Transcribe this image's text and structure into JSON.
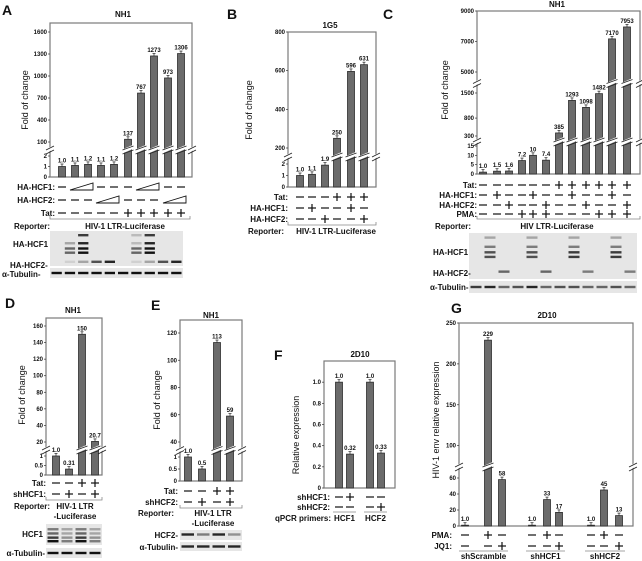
{
  "chart_data": [
    {
      "id": "A",
      "type": "bar",
      "letter": "A",
      "title": "NH1",
      "ylabel": "Fold of change",
      "axis_segments": [
        {
          "min": 0,
          "max": 2,
          "ticks": [
            "0",
            "1",
            "2"
          ]
        },
        {
          "min": 100,
          "max": 1600,
          "ticks": [
            "100",
            "400",
            "700",
            "1000",
            "1300",
            "1600"
          ]
        }
      ],
      "values": [
        1.0,
        1.1,
        1.2,
        1.1,
        1.2,
        137,
        767,
        1273,
        973,
        1306
      ],
      "labels": [
        "1.0",
        "1.1",
        "1.2",
        "1.1",
        "1.2",
        "137",
        "767",
        "1273",
        "973",
        "1306"
      ],
      "conditions": [
        {
          "label": "HA-HCF1:",
          "values": [
            "-",
            "wedge",
            "",
            "-",
            "-",
            "-",
            "wedge",
            "",
            "-",
            "-"
          ]
        },
        {
          "label": "HA-HCF2:",
          "values": [
            "-",
            "-",
            "-",
            "wedge",
            "",
            "-",
            "-",
            "-",
            "wedge",
            ""
          ]
        },
        {
          "label": "Tat:",
          "values": [
            "-",
            "-",
            "-",
            "-",
            "-",
            "+",
            "+",
            "+",
            "+",
            "+"
          ]
        }
      ],
      "reporter_label": "Reporter:",
      "reporter": "HIV-1 LTR-Luciferase",
      "blot_labels": [
        "HA-HCF1",
        "HA-HCF2-",
        "α-Tubulin-"
      ]
    },
    {
      "id": "B",
      "type": "bar",
      "letter": "B",
      "title": "1G5",
      "ylabel": "Fold of change",
      "axis_segments": [
        {
          "min": 0,
          "max": 2,
          "ticks": [
            "0",
            "1",
            "2"
          ]
        },
        {
          "min": 200,
          "max": 800,
          "ticks": [
            "200",
            "400",
            "600",
            "800"
          ]
        }
      ],
      "values": [
        1.0,
        1.1,
        1.9,
        250,
        596,
        631
      ],
      "labels": [
        "1.0",
        "1.1",
        "1.9",
        "250",
        "596",
        "631"
      ],
      "conditions": [
        {
          "label": "Tat:",
          "values": [
            "-",
            "-",
            "-",
            "+",
            "+",
            "+"
          ]
        },
        {
          "label": "HA-HCF1:",
          "values": [
            "-",
            "+",
            "-",
            "-",
            "+",
            "-"
          ]
        },
        {
          "label": "HA-HCF2:",
          "values": [
            "-",
            "-",
            "+",
            "-",
            "-",
            "+"
          ]
        }
      ],
      "reporter_label": "Reporter:",
      "reporter": "HIV-1 LTR-Luciferase",
      "blot_labels": []
    },
    {
      "id": "C",
      "type": "bar",
      "letter": "C",
      "title": "NH1",
      "ylabel": "Fold of change",
      "axis_segments": [
        {
          "min": 0,
          "max": 15,
          "ticks": [
            "0",
            "5",
            "10",
            "15"
          ]
        },
        {
          "min": 300,
          "max": 1500,
          "ticks": [
            "300",
            "800",
            "1500"
          ]
        },
        {
          "min": 5000,
          "max": 9000,
          "ticks": [
            "5000",
            "7000",
            "9000"
          ]
        }
      ],
      "values": [
        1.0,
        1.5,
        1.6,
        7.2,
        10,
        7.4,
        385,
        1293,
        1098,
        1482,
        7170,
        7953
      ],
      "labels": [
        "1.0",
        "1.5",
        "1.6",
        "7.2",
        "10",
        "7.4",
        "385",
        "1293",
        "1098",
        "1482",
        "7170",
        "7953"
      ],
      "conditions": [
        {
          "label": "Tat:",
          "values": [
            "-",
            "-",
            "-",
            "-",
            "-",
            "-",
            "+",
            "+",
            "+",
            "+",
            "+",
            "+"
          ]
        },
        {
          "label": "HA-HCF1:",
          "values": [
            "-",
            "+",
            "-",
            "-",
            "+",
            "-",
            "-",
            "+",
            "-",
            "-",
            "+",
            "-"
          ]
        },
        {
          "label": "HA-HCF2:",
          "values": [
            "-",
            "-",
            "+",
            "-",
            "-",
            "+",
            "-",
            "-",
            "+",
            "-",
            "-",
            "+"
          ]
        },
        {
          "label": "PMA:",
          "values": [
            "-",
            "-",
            "-",
            "+",
            "+",
            "+",
            "-",
            "-",
            "-",
            "+",
            "+",
            "+"
          ]
        }
      ],
      "reporter_label": "Reporter:",
      "reporter": "HIV LTR-Luciferase",
      "blot_labels": [
        "HA-HCF1",
        "HA-HCF2-",
        "α-Tubulin-"
      ]
    },
    {
      "id": "D",
      "type": "bar",
      "letter": "D",
      "title": "NH1",
      "ylabel": "Fold of change",
      "axis_segments": [
        {
          "min": 0,
          "max": 1,
          "ticks": [
            "0",
            "0.5",
            "1"
          ]
        },
        {
          "min": 20,
          "max": 160,
          "ticks": [
            "20",
            "40",
            "60",
            "80",
            "100",
            "120",
            "140",
            "160"
          ]
        }
      ],
      "values": [
        1.0,
        0.31,
        150,
        20.7
      ],
      "labels": [
        "1.0",
        "0.31",
        "150",
        "20.7"
      ],
      "conditions": [
        {
          "label": "Tat:",
          "values": [
            "-",
            "-",
            "+",
            "+"
          ]
        },
        {
          "label": "shHCF1:",
          "values": [
            "-",
            "+",
            "-",
            "+"
          ]
        }
      ],
      "reporter_label": "Reporter:",
      "reporter": "HIV-1 LTR",
      "reporter_line2": "-Luciferase",
      "blot_labels": [
        "HCF1",
        "α-Tubulin-"
      ]
    },
    {
      "id": "E",
      "type": "bar",
      "letter": "E",
      "title": "NH1",
      "ylabel": "Fold of change",
      "axis_segments": [
        {
          "min": 0,
          "max": 1,
          "ticks": [
            "0",
            "0.5",
            "1"
          ]
        },
        {
          "min": 40,
          "max": 120,
          "ticks": [
            "40",
            "60",
            "80",
            "100",
            "120"
          ]
        }
      ],
      "values": [
        1.0,
        0.5,
        113,
        59
      ],
      "labels": [
        "1.0",
        "0.5",
        "113",
        "59"
      ],
      "conditions": [
        {
          "label": "Tat:",
          "values": [
            "-",
            "-",
            "+",
            "+"
          ]
        },
        {
          "label": "shHCF2:",
          "values": [
            "-",
            "+",
            "-",
            "+"
          ]
        }
      ],
      "reporter_label": "Reporter:",
      "reporter": "HIV-1 LTR",
      "reporter_line2": "-Luciferase",
      "blot_labels": [
        "HCF2-",
        "α-Tubulin-"
      ]
    },
    {
      "id": "F",
      "type": "bar",
      "letter": "F",
      "title": "2D10",
      "ylabel": "Relative expression",
      "axis_segments": [
        {
          "min": 0,
          "max": 1.2,
          "ticks": [
            "0",
            "0.2",
            "0.4",
            "0.6",
            "0.8",
            "1.0"
          ]
        }
      ],
      "values": [
        1.0,
        0.32,
        1.0,
        0.33
      ],
      "labels": [
        "1.0",
        "0.32",
        "1.0",
        "0.33"
      ],
      "group_of_bar": [
        0,
        0,
        1,
        1
      ],
      "conditions": [
        {
          "label": "shHCF1:",
          "values": [
            "-",
            "+",
            "-",
            "-"
          ]
        },
        {
          "label": "shHCF2:",
          "values": [
            "-",
            "-",
            "-",
            "+"
          ]
        }
      ],
      "group_row_label": "qPCR primers:",
      "groups": [
        "HCF1",
        "HCF2"
      ]
    },
    {
      "id": "G",
      "type": "bar",
      "letter": "G",
      "title": "2D10",
      "ylabel": "HIV-1 env relative expression",
      "axis_segments": [
        {
          "min": 0,
          "max": 70,
          "ticks": [
            "0",
            "20",
            "40",
            "60"
          ]
        },
        {
          "min": 80,
          "max": 250,
          "ticks": [
            "100",
            "150",
            "200",
            "250"
          ]
        }
      ],
      "values": [
        1.0,
        229,
        58,
        1.0,
        33,
        17,
        1.0,
        45,
        13
      ],
      "labels": [
        "1.0",
        "229",
        "58",
        "1.0",
        "33",
        "17",
        "1.0",
        "45",
        "13"
      ],
      "group_of_bar": [
        0,
        0,
        0,
        1,
        1,
        1,
        2,
        2,
        2
      ],
      "conditions": [
        {
          "label": "PMA:",
          "values": [
            "-",
            "+",
            "-",
            "-",
            "+",
            "-",
            "-",
            "+",
            "-"
          ]
        },
        {
          "label": "JQ1:",
          "values": [
            "-",
            "-",
            "+",
            "-",
            "-",
            "+",
            "-",
            "-",
            "+"
          ]
        }
      ],
      "group_row_label": "",
      "groups": [
        "shScramble",
        "shHCF1",
        "shHCF2"
      ]
    }
  ],
  "colors": {
    "bar": "#6b6b6b",
    "bar_edge": "#2e2e2e",
    "frame": "#7a7a7a"
  }
}
